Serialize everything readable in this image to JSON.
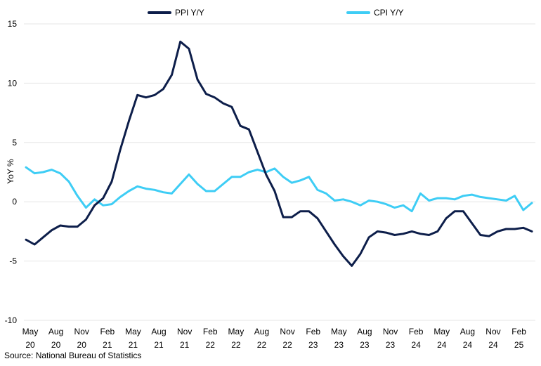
{
  "chart_data": {
    "type": "line",
    "title": "",
    "xlabel": "",
    "ylabel": "YoY %",
    "ylim": [
      -10,
      15
    ],
    "yticks": [
      15,
      10,
      5,
      0,
      -5,
      -10
    ],
    "grid": "horizontal",
    "legend_position": "top",
    "xtick_labels": [
      {
        "month": "May",
        "year": "20",
        "index": 0
      },
      {
        "month": "Aug",
        "year": "20",
        "index": 3
      },
      {
        "month": "Nov",
        "year": "20",
        "index": 6
      },
      {
        "month": "Feb",
        "year": "21",
        "index": 9
      },
      {
        "month": "May",
        "year": "21",
        "index": 12
      },
      {
        "month": "Aug",
        "year": "21",
        "index": 15
      },
      {
        "month": "Nov",
        "year": "21",
        "index": 18
      },
      {
        "month": "Feb",
        "year": "22",
        "index": 21
      },
      {
        "month": "May",
        "year": "22",
        "index": 24
      },
      {
        "month": "Aug",
        "year": "22",
        "index": 27
      },
      {
        "month": "Nov",
        "year": "22",
        "index": 30
      },
      {
        "month": "Feb",
        "year": "23",
        "index": 33
      },
      {
        "month": "May",
        "year": "23",
        "index": 36
      },
      {
        "month": "Aug",
        "year": "23",
        "index": 39
      },
      {
        "month": "Nov",
        "year": "23",
        "index": 42
      },
      {
        "month": "Feb",
        "year": "24",
        "index": 45
      },
      {
        "month": "May",
        "year": "24",
        "index": 48
      },
      {
        "month": "Aug",
        "year": "24",
        "index": 51
      },
      {
        "month": "Nov",
        "year": "24",
        "index": 54
      },
      {
        "month": "Feb",
        "year": "25",
        "index": 57
      }
    ],
    "series": [
      {
        "name": "PPI Y/Y",
        "color": "#0d1e4a",
        "values": [
          -3.2,
          -3.6,
          -3.0,
          -2.4,
          -2.0,
          -2.1,
          -2.1,
          -1.5,
          -0.3,
          0.3,
          1.7,
          4.4,
          6.8,
          9.0,
          8.8,
          9.0,
          9.5,
          10.7,
          13.5,
          12.9,
          10.3,
          9.1,
          8.8,
          8.3,
          8.0,
          6.4,
          6.1,
          4.2,
          2.3,
          0.9,
          -1.3,
          -1.3,
          -0.8,
          -0.8,
          -1.4,
          -2.5,
          -3.6,
          -4.6,
          -5.4,
          -4.4,
          -3.0,
          -2.5,
          -2.6,
          -2.8,
          -2.7,
          -2.5,
          -2.7,
          -2.8,
          -2.5,
          -1.4,
          -0.8,
          -0.8,
          -1.8,
          -2.8,
          -2.9,
          -2.5,
          -2.3,
          -2.3,
          -2.2,
          -2.5
        ]
      },
      {
        "name": "CPI Y/Y",
        "color": "#3ecdf5",
        "values": [
          2.9,
          2.4,
          2.5,
          2.7,
          2.4,
          1.7,
          0.5,
          -0.5,
          0.2,
          -0.3,
          -0.2,
          0.4,
          0.9,
          1.3,
          1.1,
          1.0,
          0.8,
          0.7,
          1.5,
          2.3,
          1.5,
          0.9,
          0.9,
          1.5,
          2.1,
          2.1,
          2.5,
          2.7,
          2.5,
          2.8,
          2.1,
          1.6,
          1.8,
          2.1,
          1.0,
          0.7,
          0.1,
          0.2,
          0.0,
          -0.3,
          0.1,
          0.0,
          -0.2,
          -0.5,
          -0.3,
          -0.8,
          0.7,
          0.1,
          0.3,
          0.3,
          0.2,
          0.5,
          0.6,
          0.4,
          0.3,
          0.2,
          0.1,
          0.5,
          -0.7,
          -0.1
        ]
      }
    ],
    "source": "Source: National Bureau of Statistics"
  }
}
